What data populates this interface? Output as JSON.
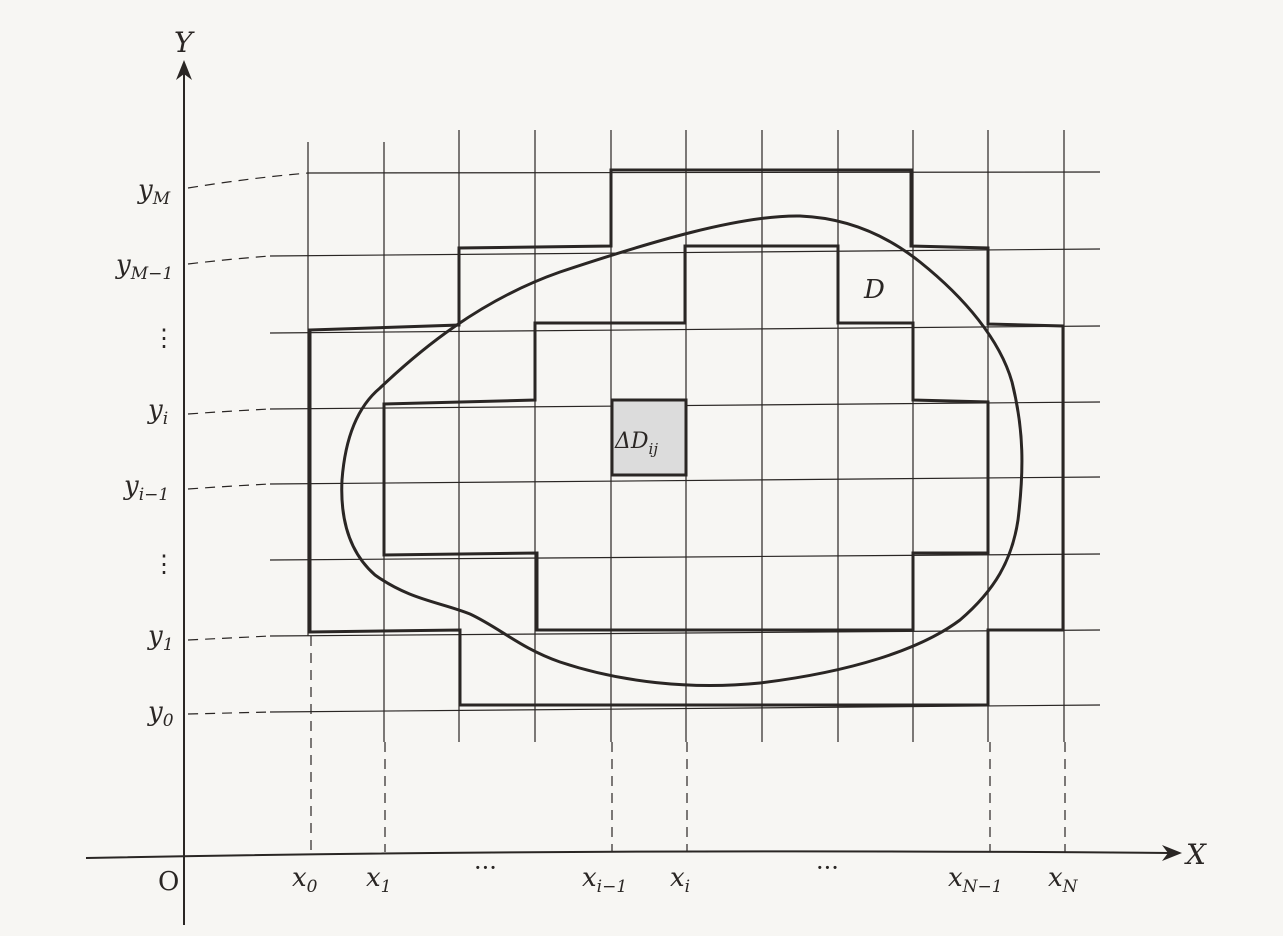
{
  "diagram": {
    "axis_x_label": "X",
    "axis_y_label": "Y",
    "origin_label": "O",
    "region_label": "D",
    "cell_label_main": "ΔD",
    "cell_label_sub": "ij",
    "x_ticks": [
      {
        "main": "x",
        "sub": "0"
      },
      {
        "main": "x",
        "sub": "1"
      },
      {
        "main": "x",
        "sub": "i−1"
      },
      {
        "main": "x",
        "sub": "i"
      },
      {
        "main": "x",
        "sub": "N−1"
      },
      {
        "main": "x",
        "sub": "N"
      }
    ],
    "y_ticks": [
      {
        "main": "y",
        "sub": "M"
      },
      {
        "main": "y",
        "sub": "M−1"
      },
      {
        "main": "y",
        "sub": "i"
      },
      {
        "main": "y",
        "sub": "i−1"
      },
      {
        "main": "y",
        "sub": "1"
      },
      {
        "main": "y",
        "sub": "0"
      }
    ],
    "x_ellipsis_label": "···",
    "y_ellipsis_label": "⋮",
    "colors": {
      "line": "#2a2624",
      "cell_fill": "#dcdcdc",
      "background": "#f7f6f3"
    }
  }
}
